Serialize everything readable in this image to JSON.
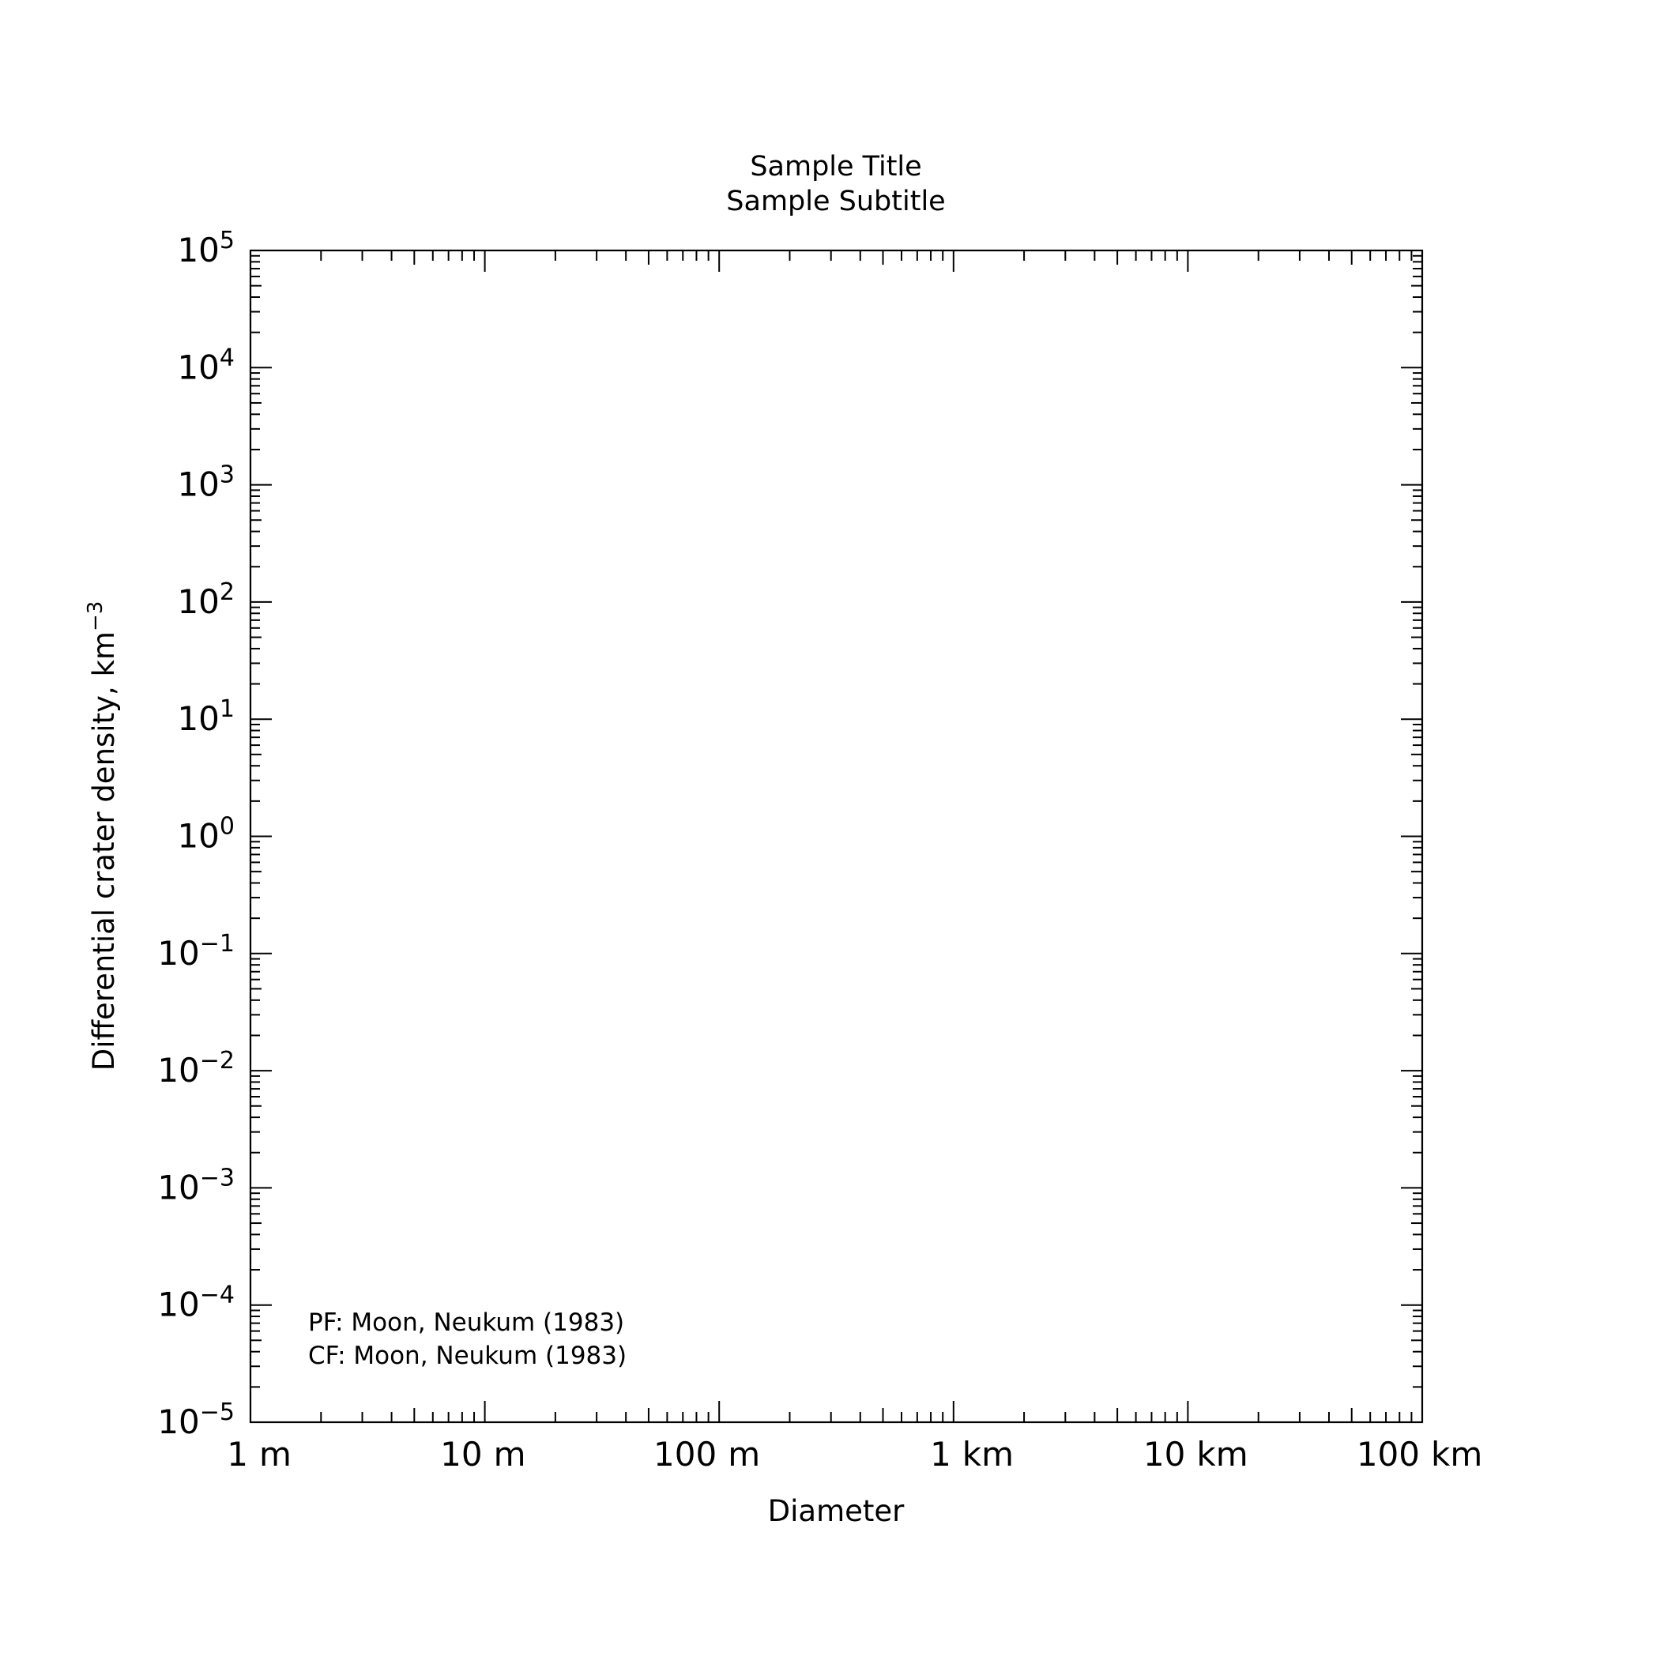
{
  "chart_data": {
    "type": "scatter",
    "title": "Sample Title",
    "subtitle": "Sample Subtitle",
    "xlabel": "Diameter",
    "ylabel": "Differential crater density, km",
    "ylabel_superscript": "−3",
    "x_scale": "log",
    "y_scale": "log",
    "xlim": [
      "1 m",
      "100 km"
    ],
    "ylim": [
      1e-05,
      100000
    ],
    "x_tick_labels": [
      {
        "number": "1",
        "unit": "m"
      },
      {
        "number": "10",
        "unit": "m"
      },
      {
        "number": "100",
        "unit": "m"
      },
      {
        "number": "1",
        "unit": "km"
      },
      {
        "number": "10",
        "unit": "km"
      },
      {
        "number": "100",
        "unit": "km"
      }
    ],
    "y_tick_labels": [
      {
        "base": "10",
        "exp": "5"
      },
      {
        "base": "10",
        "exp": "4"
      },
      {
        "base": "10",
        "exp": "3"
      },
      {
        "base": "10",
        "exp": "2"
      },
      {
        "base": "10",
        "exp": "1"
      },
      {
        "base": "10",
        "exp": "0"
      },
      {
        "base": "10",
        "exp": "−1"
      },
      {
        "base": "10",
        "exp": "−2"
      },
      {
        "base": "10",
        "exp": "−3"
      },
      {
        "base": "10",
        "exp": "−4"
      },
      {
        "base": "10",
        "exp": "−5"
      }
    ],
    "annotations": [
      "PF: Moon, Neukum (1983)",
      "CF: Moon, Neukum (1983)"
    ],
    "series": [],
    "grid": false,
    "legend": "none"
  }
}
